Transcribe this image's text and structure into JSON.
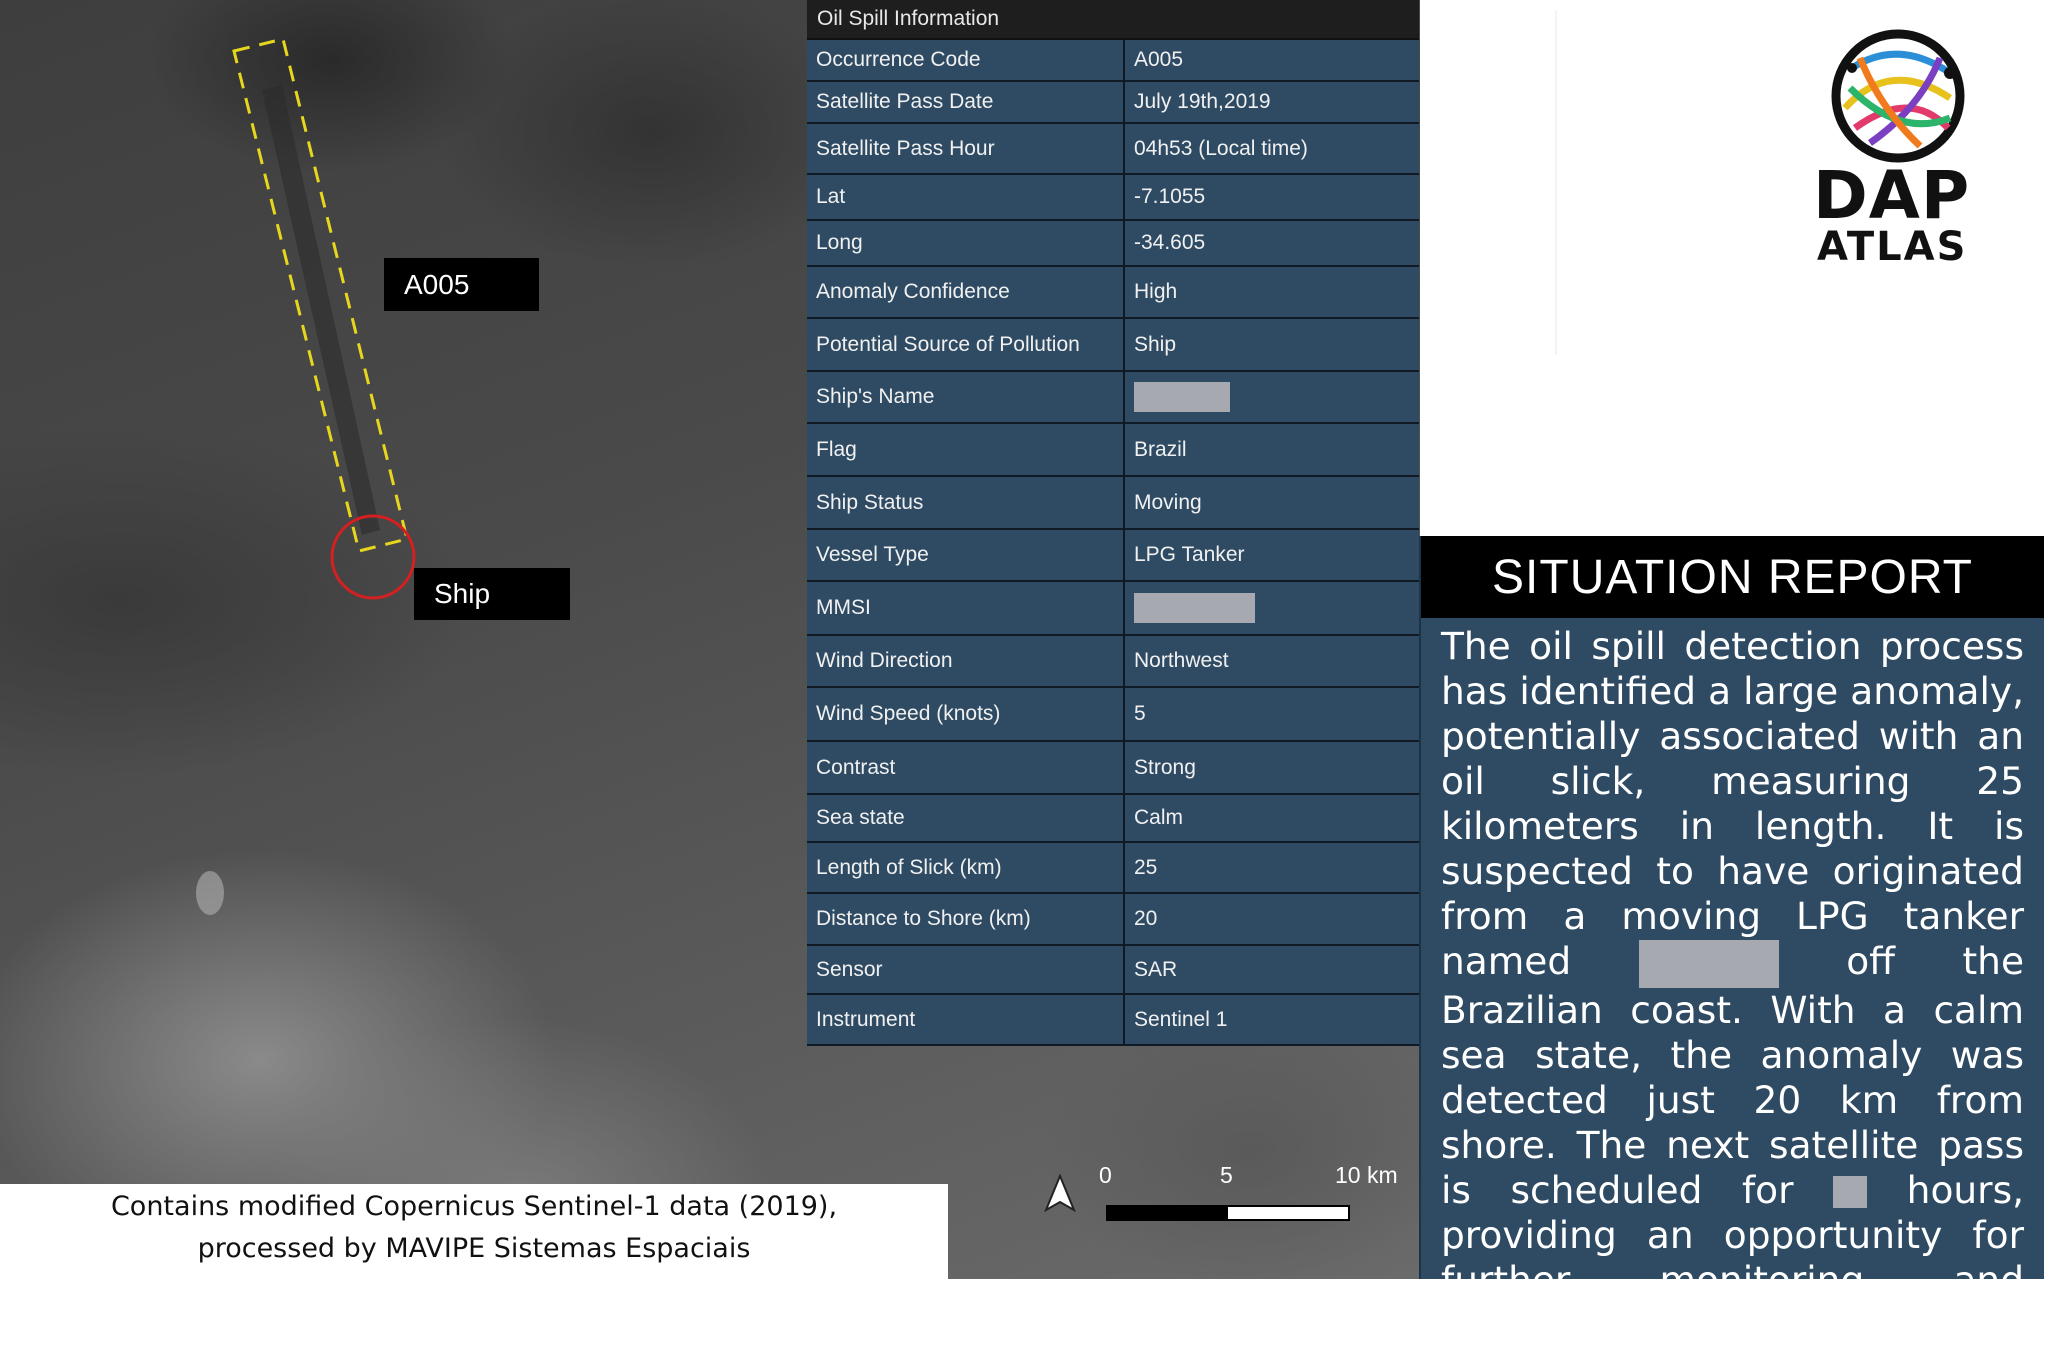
{
  "map": {
    "spill_label": "A005",
    "ship_label": "Ship",
    "scale": {
      "ticks": [
        "0",
        "5",
        "10 km"
      ]
    },
    "credit_line1": "Contains modified Copernicus Sentinel-1 data (2019),",
    "credit_line2": "processed by MAVIPE Sistemas Espaciais",
    "colors": {
      "spill_box": "#e6d61e",
      "ship_circle": "#d42020"
    }
  },
  "info": {
    "title": "Oil Spill Information",
    "rows": [
      {
        "key": "Occurrence Code",
        "value": "A005"
      },
      {
        "key": "Satellite Pass Date",
        "value": "July 19th,2019"
      },
      {
        "key": "Satellite Pass Hour",
        "value": "04h53 (Local time)"
      },
      {
        "key": "Lat",
        "value": "-7.1055"
      },
      {
        "key": "Long",
        "value": "-34.605"
      },
      {
        "key": "Anomaly Confidence",
        "value": "High"
      },
      {
        "key": "Potential Source of Pollution",
        "value": "Ship"
      },
      {
        "key": "Ship's Name",
        "value": ""
      },
      {
        "key": "Flag",
        "value": "Brazil"
      },
      {
        "key": "Ship Status",
        "value": "Moving"
      },
      {
        "key": "Vessel Type",
        "value": "LPG Tanker"
      },
      {
        "key": "MMSI",
        "value": ""
      },
      {
        "key": "Wind Direction",
        "value": "Northwest"
      },
      {
        "key": "Wind Speed (knots)",
        "value": "5"
      },
      {
        "key": "Contrast",
        "value": "Strong"
      },
      {
        "key": "Sea state",
        "value": "Calm"
      },
      {
        "key": "Length of Slick (km)",
        "value": "25"
      },
      {
        "key": "Distance to Shore (km)",
        "value": "20"
      },
      {
        "key": "Sensor",
        "value": "SAR"
      },
      {
        "key": "Instrument",
        "value": "Sentinel 1"
      }
    ]
  },
  "logo": {
    "line1": "DAP",
    "line2": "ATLAS"
  },
  "report": {
    "title": "SITUATION REPORT",
    "text_part1": "The oil spill detection process has identified a large anomaly, potentially associated with an oil slick, measuring 25 kilometers in length. It is suspected to have originated from a moving LPG tanker named",
    "text_part2": "off the Brazilian coast. With a calm sea state, the anomaly was detected just 20 km from shore. The next satellite pass is scheduled for",
    "text_part3": "hours, providing an opportunity for further monitoring and assessment."
  }
}
